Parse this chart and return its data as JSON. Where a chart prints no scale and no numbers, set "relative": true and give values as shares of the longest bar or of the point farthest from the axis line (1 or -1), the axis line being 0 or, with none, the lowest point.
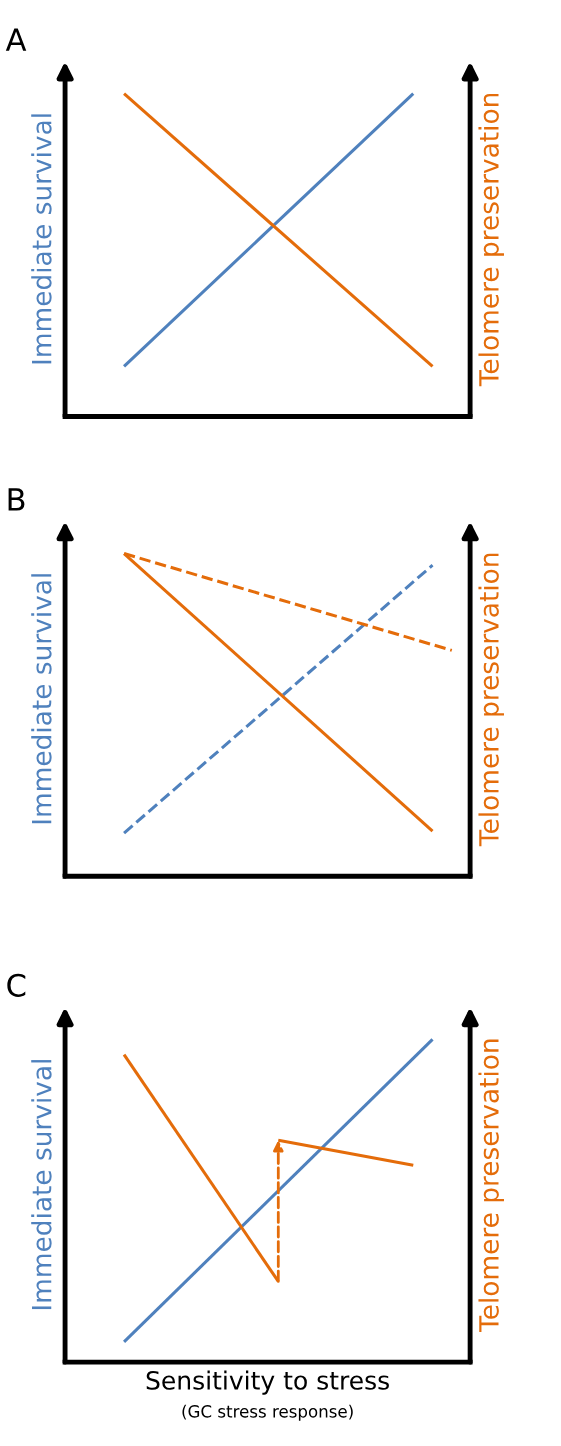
{
  "chart_data": [
    {
      "type": "line",
      "title": "A",
      "ylabel": "Immediate survival",
      "y2label": "Telomere preservation",
      "relative": true,
      "tick_labels": false,
      "line_style": "solid",
      "marker": "none",
      "categories": [
        null,
        null,
        null,
        null,
        null,
        null,
        null,
        null,
        null,
        null,
        null,
        null,
        null,
        null,
        null,
        null,
        null,
        null
      ],
      "series": [
        {
          "color": "#4f81bd",
          "values": [
            0.155,
            null,
            null,
            null,
            null,
            null,
            null,
            null,
            null,
            null,
            null,
            null,
            null,
            null,
            null,
            1,
            null,
            null
          ]
        },
        {
          "color": "#e46c0a",
          "values": [
            1,
            null,
            null,
            null,
            null,
            null,
            null,
            null,
            null,
            null,
            null,
            null,
            null,
            null,
            null,
            null,
            0.155,
            null
          ]
        }
      ]
    },
    {
      "type": "line",
      "title": "B",
      "ylabel": "Immediate survival",
      "y2label": "Telomere preservation",
      "relative": true,
      "tick_labels": false,
      "line_style": "solid",
      "marker": "none",
      "categories": [
        null,
        null,
        null,
        null,
        null,
        null,
        null,
        null,
        null,
        null,
        null,
        null,
        null,
        null,
        null,
        null,
        null,
        null
      ],
      "series": [
        {
          "color": "#4f81bd",
          "line_style": "dashed",
          "values": [
            0.134,
            null,
            null,
            null,
            null,
            null,
            null,
            null,
            null,
            null,
            null,
            null,
            null,
            null,
            null,
            null,
            0.964,
            null
          ]
        },
        {
          "color": "#e46c0a",
          "values": [
            1,
            null,
            null,
            null,
            null,
            null,
            null,
            null,
            null,
            null,
            null,
            null,
            null,
            null,
            null,
            null,
            0.14,
            null
          ]
        },
        {
          "color": "#e46c0a",
          "line_style": "dashed",
          "values": [
            1,
            null,
            null,
            null,
            null,
            null,
            null,
            null,
            null,
            null,
            null,
            null,
            null,
            null,
            null,
            null,
            null,
            0.7
          ]
        }
      ]
    },
    {
      "type": "line",
      "title": "C",
      "ylabel": "Immediate survival",
      "y2label": "Telomere preservation",
      "xlabel": "Sensitivity to stress",
      "annotations": [
        "(GC stress response)"
      ],
      "relative": true,
      "tick_labels": false,
      "line_style": "solid",
      "marker": "none",
      "categories": [
        null,
        null,
        null,
        null,
        null,
        null,
        null,
        null,
        null,
        null,
        null,
        null,
        null,
        null,
        null,
        null,
        null,
        null
      ],
      "series": [
        {
          "color": "#4f81bd",
          "values": [
            0.0625,
            null,
            null,
            null,
            null,
            null,
            null,
            null,
            null,
            null,
            null,
            null,
            null,
            null,
            null,
            null,
            1,
            null
          ]
        },
        {
          "color": "#e46c0a",
          "values": [
            0.953,
            null,
            null,
            null,
            null,
            null,
            null,
            null,
            0.25,
            null,
            null,
            null,
            null,
            null,
            null,
            null,
            null,
            null
          ]
        },
        {
          "color": "#e46c0a",
          "values": [
            null,
            null,
            null,
            null,
            null,
            null,
            null,
            null,
            0.6875,
            null,
            null,
            null,
            null,
            null,
            null,
            0.61,
            null,
            null
          ]
        }
      ]
    }
  ]
}
